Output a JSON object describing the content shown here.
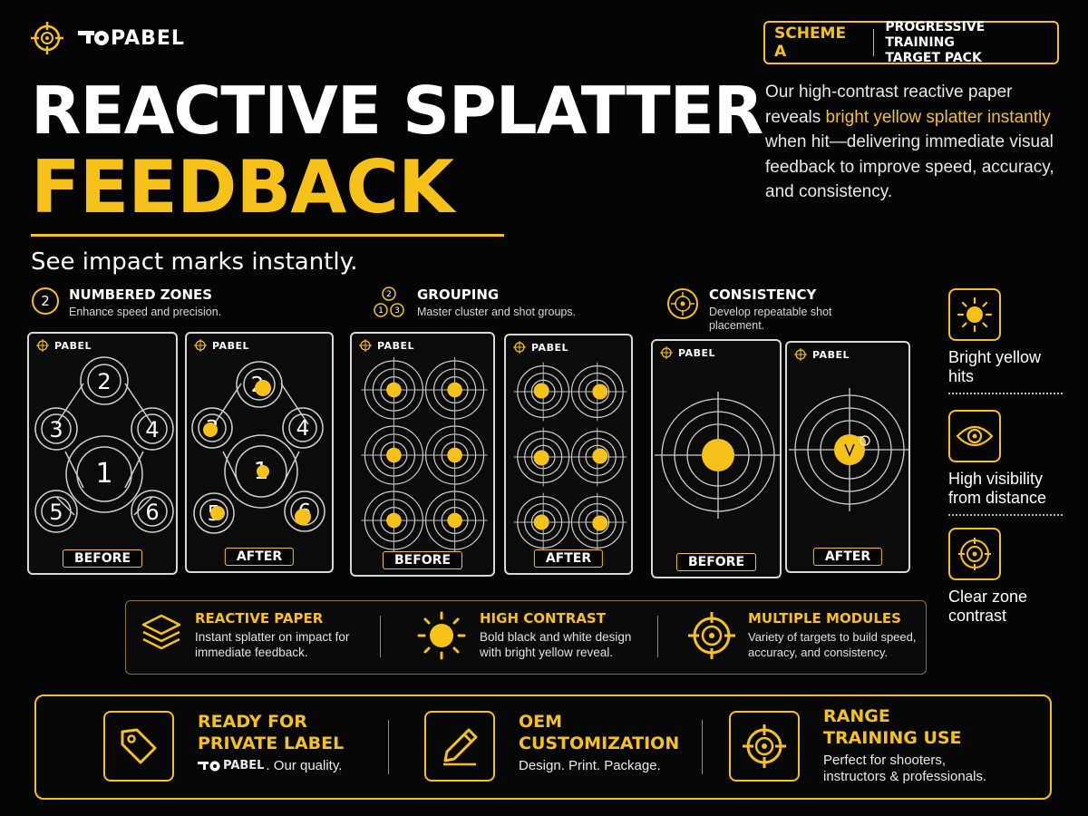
{
  "brand": {
    "name": "PABEL",
    "logo_icon": "crosshair-icon"
  },
  "scheme": {
    "label": "SCHEME A",
    "pack_line1": "PROGRESSIVE TRAINING",
    "pack_line2": "TARGET PACK"
  },
  "hero": {
    "title_line1": "REACTIVE SPLATTER",
    "title_line2": "FEEDBACK",
    "subtitle": "See impact marks instantly.",
    "description": {
      "part1": "Our high-contrast reactive paper reveals ",
      "highlight": "bright yellow splatter instantly",
      "part2": " when hit—delivering immediate visual feedback to improve speed, accuracy, and consistency."
    }
  },
  "modules": [
    {
      "badge": "2",
      "title": "NUMBERED ZONES",
      "subtitle": "Enhance speed and precision.",
      "icon": "numbered-badge-icon"
    },
    {
      "badge_numbers": [
        "2",
        "1",
        "3"
      ],
      "title": "GROUPING",
      "subtitle": "Master cluster and shot groups.",
      "icon": "group-badge-icon"
    },
    {
      "title": "CONSISTENCY",
      "subtitle": "Develop repeatable shot placement.",
      "icon": "crosshair-icon"
    }
  ],
  "cards": {
    "before_label": "BEFORE",
    "after_label": "AFTER",
    "zone_numbers": [
      "1",
      "2",
      "3",
      "4",
      "5",
      "6"
    ]
  },
  "side_features": [
    {
      "icon": "sun-icon",
      "label": "Bright yellow hits"
    },
    {
      "icon": "eye-icon",
      "label": "High visibility from distance"
    },
    {
      "icon": "target-icon",
      "label": "Clear zone contrast"
    }
  ],
  "benefits": [
    {
      "icon": "layers-icon",
      "title": "REACTIVE PAPER",
      "text": "Instant splatter on impact for immediate feedback."
    },
    {
      "icon": "sun-icon",
      "title": "HIGH CONTRAST",
      "text": "Bold black and white design with bright yellow reveal."
    },
    {
      "icon": "crosshair-icon",
      "title": "MULTIPLE MODULES",
      "text": "Variety of targets to build speed, accuracy, and consistency."
    }
  ],
  "bottom": [
    {
      "icon": "tag-icon",
      "title_line1": "READY FOR",
      "title_line2": "PRIVATE LABEL",
      "text_suffix": ". Our quality."
    },
    {
      "icon": "pencil-icon",
      "title_line1": "OEM",
      "title_line2": "CUSTOMIZATION",
      "text": "Design. Print. Package."
    },
    {
      "icon": "crosshair-icon",
      "title_line1": "RANGE",
      "title_line2": "TRAINING USE",
      "text": "Perfect for shooters, instructors & professionals."
    }
  ],
  "colors": {
    "accent": "#f6c21a",
    "background": "#050505",
    "card_border": "#d8d8d8"
  }
}
